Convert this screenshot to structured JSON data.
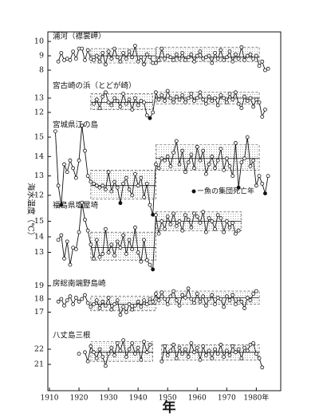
{
  "chart_data": {
    "type": "line",
    "xlabel": "年",
    "ylabel": "海水温度（℃）",
    "legend_note": "ー魚の集団死亡年",
    "xlim": [
      1910,
      1988
    ],
    "xticks": [
      1910,
      1920,
      1930,
      1940,
      1950,
      1960,
      1970,
      {
        "value": 1980,
        "label": "1980年"
      }
    ],
    "x": [
      1912,
      1913,
      1914,
      1915,
      1916,
      1917,
      1918,
      1919,
      1920,
      1921,
      1922,
      1923,
      1924,
      1925,
      1926,
      1927,
      1928,
      1929,
      1930,
      1931,
      1932,
      1933,
      1934,
      1935,
      1936,
      1937,
      1938,
      1939,
      1940,
      1941,
      1942,
      1943,
      1944,
      1945,
      1946,
      1947,
      1948,
      1949,
      1950,
      1951,
      1952,
      1953,
      1954,
      1955,
      1956,
      1957,
      1958,
      1959,
      1960,
      1961,
      1962,
      1963,
      1964,
      1965,
      1966,
      1967,
      1968,
      1969,
      1970,
      1971,
      1972,
      1973,
      1974,
      1975,
      1976,
      1977,
      1978,
      1979,
      1980,
      1981,
      1982,
      1983,
      1984,
      1985
    ],
    "panels": [
      {
        "title": "浦河（襟裳岬）",
        "ylim": [
          7.6,
          10.4
        ],
        "yticks": [
          8,
          9,
          10
        ],
        "values": [
          null,
          8.6,
          9.2,
          8.7,
          8.8,
          8.7,
          9.3,
          8.8,
          9.5,
          9.5,
          8.7,
          9.4,
          8.8,
          8.7,
          9.0,
          8.6,
          9.2,
          8.4,
          9.3,
          8.8,
          9.5,
          8.9,
          8.6,
          9.2,
          8.8,
          9.3,
          8.9,
          9.7,
          8.6,
          8.9,
          8.4,
          9.1,
          8.9,
          8.5,
          8.5,
          8.7,
          9.5,
          8.8,
          9.0,
          8.9,
          8.7,
          9.1,
          8.8,
          9.2,
          8.7,
          8.9,
          9.1,
          8.6,
          9.0,
          9.3,
          8.8,
          8.9,
          9.0,
          8.5,
          9.2,
          8.8,
          9.4,
          8.7,
          8.9,
          9.3,
          8.6,
          9.1,
          8.8,
          9.6,
          8.7,
          9.0,
          9.1,
          8.8,
          9.0,
          8.3,
          8.6,
          8.0,
          8.1,
          null
        ],
        "bands": [
          {
            "x": [
              1924,
              1946
            ],
            "range": [
              8.5,
              9.5
            ],
            "mean": 9.0
          },
          {
            "x": [
              1946,
              1981
            ],
            "range": [
              8.6,
              9.6
            ],
            "mean": 8.9
          }
        ]
      },
      {
        "title": "宮古崎の浜（とどが崎）",
        "ylim": [
          11.4,
          14.0
        ],
        "yticks": [
          12,
          13
        ],
        "values": [
          null,
          null,
          null,
          null,
          null,
          null,
          null,
          null,
          null,
          null,
          null,
          null,
          null,
          12.6,
          12.9,
          12.3,
          13.1,
          13.4,
          12.7,
          12.5,
          13.0,
          12.8,
          12.4,
          13.3,
          12.6,
          12.9,
          12.2,
          13.0,
          12.5,
          12.8,
          12.7,
          11.8,
          11.6,
          12.0,
          13.4,
          12.9,
          13.2,
          12.8,
          13.5,
          13.0,
          12.7,
          13.1,
          12.9,
          13.2,
          12.7,
          13.0,
          13.3,
          12.8,
          13.0,
          13.4,
          12.9,
          12.6,
          13.1,
          12.8,
          13.0,
          12.5,
          13.2,
          13.0,
          12.7,
          13.3,
          12.9,
          13.4,
          12.6,
          12.3,
          13.1,
          12.8,
          13.0,
          12.4,
          12.9,
          12.7,
          11.7,
          12.2,
          null,
          null
        ],
        "bands": [
          {
            "x": [
              1924,
              1945
            ],
            "range": [
              12.2,
              13.3
            ],
            "mean": 12.7
          },
          {
            "x": [
              1946,
              1981
            ],
            "range": [
              12.6,
              13.4
            ],
            "mean": 13.0
          }
        ],
        "kill_years": [
          1944
        ]
      },
      {
        "title": "宮城県江の島",
        "ylim": [
          10.9,
          15.7
        ],
        "yticks": [
          12,
          13,
          14,
          15
        ],
        "values": [
          15.3,
          12.5,
          11.5,
          13.6,
          13.2,
          13.8,
          13.4,
          12.9,
          13.8,
          15.6,
          14.3,
          13.0,
          12.7,
          12.6,
          12.5,
          12.4,
          12.5,
          12.3,
          13.2,
          12.2,
          12.7,
          12.4,
          11.6,
          12.6,
          12.9,
          12.3,
          12.0,
          13.1,
          12.5,
          12.9,
          11.9,
          12.6,
          11.5,
          11.0,
          13.6,
          13.4,
          13.9,
          13.8,
          14.0,
          13.5,
          14.2,
          14.8,
          13.6,
          14.3,
          13.2,
          13.7,
          14.1,
          13.4,
          14.5,
          13.8,
          14.3,
          13.1,
          13.6,
          14.0,
          13.4,
          13.8,
          14.4,
          13.3,
          13.9,
          13.5,
          13.0,
          14.7,
          12.4,
          13.7,
          13.9,
          15.0,
          13.5,
          13.8,
          12.5,
          13.0,
          12.6,
          12.1,
          13.0,
          null
        ],
        "bands": [
          {
            "x": [
              1924,
              1946
            ],
            "range": [
              11.8,
              13.3
            ],
            "mean": 12.5
          },
          {
            "x": [
              1946,
              1981
            ],
            "range": [
              13.3,
              14.6
            ],
            "mean": 13.9
          }
        ],
        "kill_years": [
          1914,
          1934,
          1945,
          1974,
          1983
        ]
      },
      {
        "title": "福島県塩屋埼",
        "ylim": [
          11.8,
          16.4
        ],
        "yticks": [
          13,
          14,
          15
        ],
        "values": [
          null,
          13.8,
          14.1,
          12.6,
          13.7,
          12.2,
          13.3,
          13.2,
          14.3,
          16.2,
          15.1,
          14.4,
          13.5,
          12.6,
          13.8,
          12.7,
          12.9,
          14.5,
          13.0,
          13.5,
          12.8,
          13.7,
          13.3,
          14.1,
          12.9,
          13.8,
          13.2,
          14.6,
          13.0,
          12.4,
          13.8,
          12.5,
          12.2,
          11.9,
          15.4,
          14.2,
          15.0,
          14.5,
          15.3,
          14.8,
          15.5,
          14.7,
          15.0,
          14.4,
          15.4,
          15.1,
          14.6,
          15.5,
          15.3,
          14.9,
          15.6,
          14.3,
          15.2,
          15.0,
          14.5,
          15.4,
          15.2,
          14.3,
          15.0,
          14.6,
          14.9,
          14.2,
          14.4,
          null,
          null,
          null,
          null,
          null,
          null,
          null,
          null,
          null,
          null,
          null
        ],
        "bands": [
          {
            "x": [
              1924,
              1946
            ],
            "range": [
              12.5,
              14.3
            ],
            "mean": 13.3
          },
          {
            "x": [
              1946,
              1975
            ],
            "range": [
              14.4,
              15.6
            ],
            "mean": 15.0
          }
        ],
        "kill_years": [
          1945
        ]
      },
      {
        "title": "房総南端野島崎",
        "ylim": [
          16.5,
          19.5
        ],
        "yticks": [
          17,
          18,
          19
        ],
        "values": [
          null,
          17.8,
          18.0,
          17.5,
          17.9,
          18.2,
          17.6,
          18.1,
          17.8,
          18.0,
          18.3,
          17.7,
          17.4,
          17.6,
          17.9,
          17.3,
          17.8,
          17.5,
          18.1,
          17.2,
          17.6,
          17.9,
          16.8,
          17.4,
          17.0,
          17.6,
          17.2,
          17.5,
          17.8,
          17.4,
          17.9,
          17.6,
          18.0,
          17.8,
          18.4,
          17.9,
          18.5,
          18.0,
          17.6,
          18.2,
          18.6,
          17.9,
          17.5,
          18.3,
          18.1,
          18.8,
          18.0,
          17.7,
          18.4,
          17.8,
          18.2,
          17.5,
          18.0,
          18.3,
          17.6,
          18.1,
          18.0,
          17.4,
          18.2,
          17.9,
          18.3,
          17.6,
          18.0,
          17.8,
          17.3,
          18.1,
          17.9,
          18.4,
          18.6,
          null,
          null,
          null,
          null,
          null
        ],
        "bands": [
          {
            "x": [
              1924,
              1946
            ],
            "range": [
              17.1,
              18.2
            ],
            "mean": 17.6
          },
          {
            "x": [
              1946,
              1981
            ],
            "range": [
              17.6,
              18.6
            ],
            "mean": 18.1
          }
        ]
      },
      {
        "title": "八丈島三根",
        "ylim": [
          20.0,
          23.2
        ],
        "yticks": [
          21,
          22
        ],
        "values": [
          null,
          null,
          null,
          null,
          null,
          null,
          null,
          null,
          21.7,
          null,
          21.8,
          21.2,
          22.2,
          21.8,
          21.4,
          22.0,
          21.5,
          20.9,
          21.7,
          22.1,
          21.6,
          22.4,
          21.9,
          22.6,
          21.5,
          22.0,
          22.4,
          21.7,
          22.1,
          21.3,
          22.5,
          21.8,
          22.3,
          null,
          null,
          null,
          21.2,
          22.2,
          21.6,
          21.9,
          22.3,
          21.4,
          22.1,
          21.7,
          22.0,
          21.5,
          22.4,
          21.8,
          22.1,
          21.3,
          22.2,
          21.6,
          21.9,
          21.4,
          22.0,
          21.7,
          22.3,
          21.5,
          21.9,
          21.6,
          22.2,
          21.8,
          22.0,
          21.4,
          22.1,
          21.9,
          22.3,
          22.4,
          21.7,
          21.4,
          20.8,
          null,
          null,
          null
        ],
        "bands": [
          {
            "x": [
              1924,
              1945
            ],
            "range": [
              21.2,
              22.5
            ],
            "mean": 21.8
          },
          {
            "x": [
              1948,
              1981
            ],
            "range": [
              21.3,
              22.3
            ],
            "mean": 21.8
          }
        ]
      }
    ]
  }
}
